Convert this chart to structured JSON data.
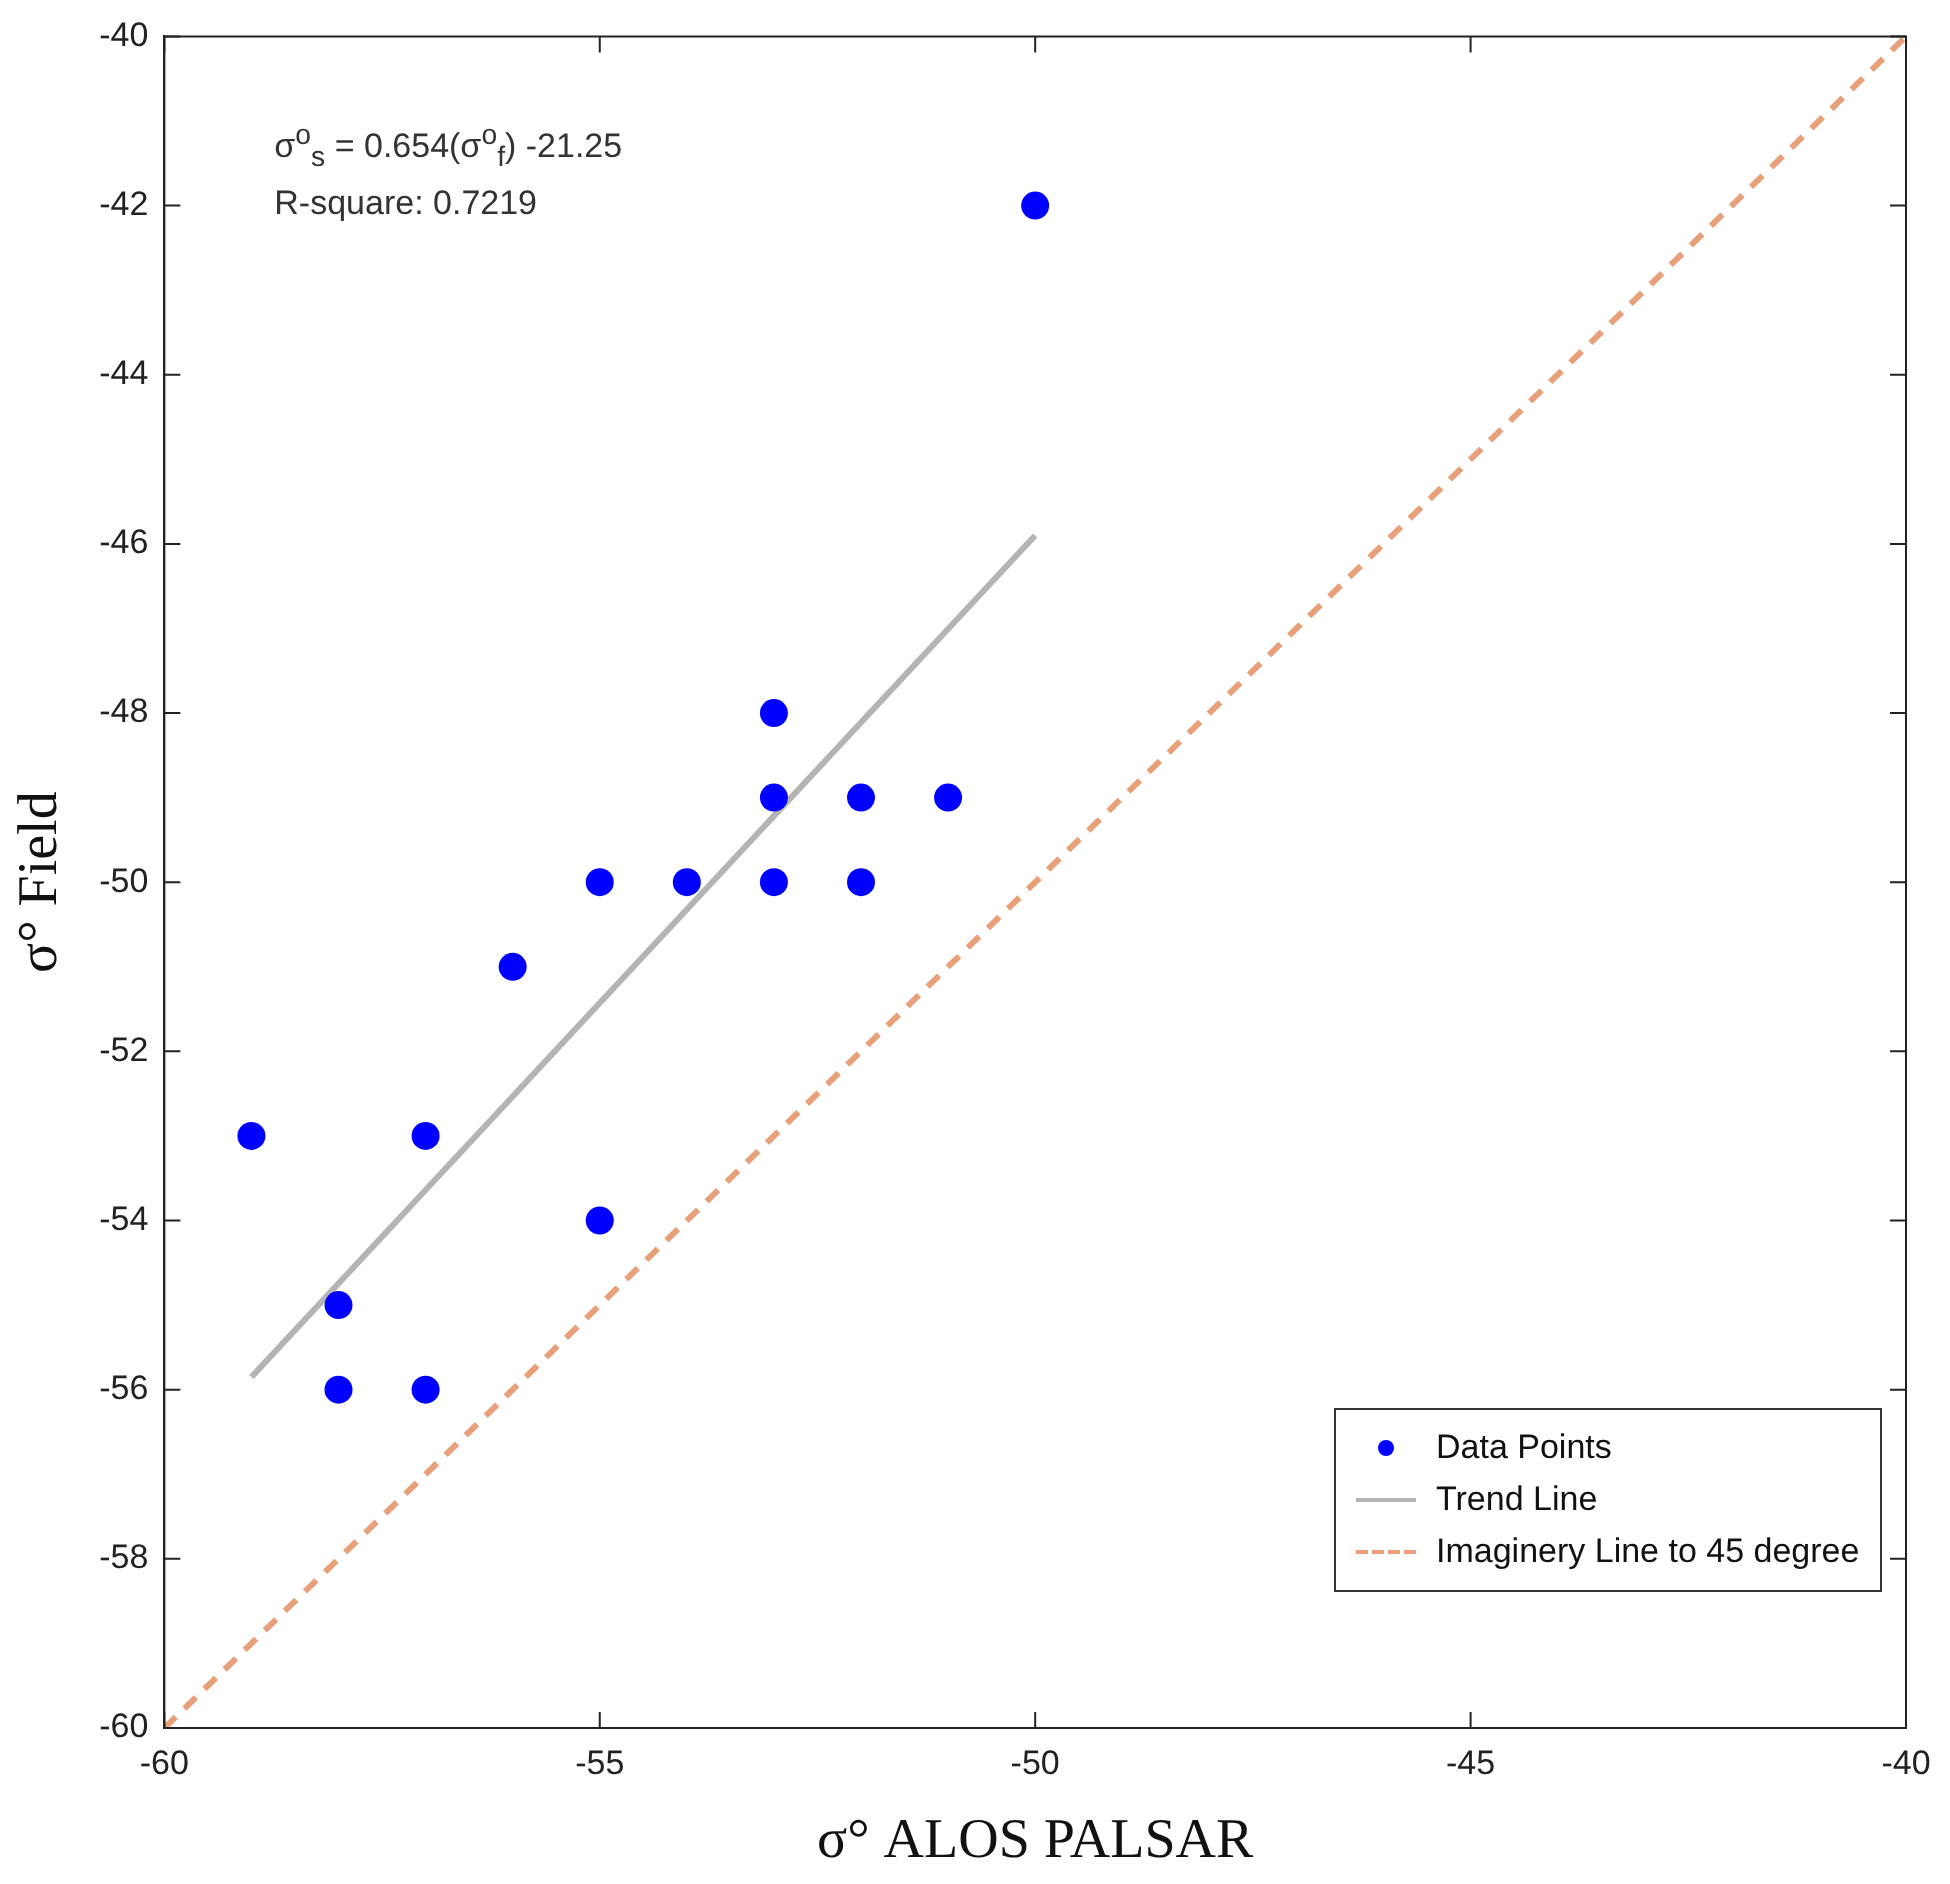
{
  "chart_data": {
    "type": "scatter",
    "xlabel": "σ° ALOS PALSAR",
    "ylabel": "σ° Field",
    "xlim": [
      -60,
      -40
    ],
    "xticks": [
      -60,
      -55,
      -50,
      -45,
      -40
    ],
    "ylim": [
      -60,
      -40
    ],
    "yticks": [
      -60,
      -58,
      -56,
      -54,
      -52,
      -50,
      -48,
      -46,
      -44,
      -42,
      -40
    ],
    "grid": false,
    "legend": "bottom right",
    "annotations": [
      "σ$^{o}$$_{s}$ = 0.654(σ$^{o}$$_{f}$) -21.25",
      "R-square: 0.7219"
    ],
    "series": [
      {
        "name": "Data Points",
        "type": "scatter",
        "marker": "circle",
        "color": "#0000ff",
        "x": [
          -59,
          -58,
          -58,
          -57,
          -57,
          -56,
          -55,
          -55,
          -54,
          -53,
          -53,
          -53,
          -52,
          -52,
          -51,
          -50
        ],
        "values": [
          -53,
          -55,
          -56,
          -53,
          -56,
          -51,
          -50,
          -54,
          -50,
          -48,
          -49,
          -50,
          -49,
          -50,
          -49,
          -42
        ]
      },
      {
        "name": "Trend Line",
        "type": "line",
        "marker": "none",
        "line_style": "solid",
        "color": "#b4b4b4",
        "x": [
          -59,
          -50
        ],
        "values": [
          -55.85,
          -45.9
        ]
      },
      {
        "name": "Imaginery Line to 45 degree",
        "type": "line",
        "marker": "none",
        "line_style": "dashed",
        "color": "#e8a07a",
        "x": [
          -60,
          -40
        ],
        "values": [
          -60,
          -40
        ]
      }
    ]
  }
}
